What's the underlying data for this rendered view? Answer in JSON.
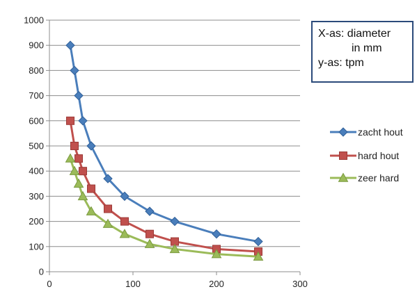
{
  "chart_data": {
    "type": "line",
    "xlim": [
      0,
      300
    ],
    "ylim": [
      0,
      1000
    ],
    "xticks": [
      "0",
      "100",
      "200",
      "300"
    ],
    "yticks": [
      "0",
      "100",
      "200",
      "300",
      "400",
      "500",
      "600",
      "700",
      "800",
      "900",
      "1000"
    ],
    "grid": "horizontal",
    "legend_position": "right",
    "x": [
      25,
      30,
      35,
      40,
      50,
      70,
      90,
      120,
      150,
      200,
      250
    ],
    "series": [
      {
        "name": "zacht hout",
        "color": "#4a7ebb",
        "marker": "diamond",
        "values": [
          900,
          800,
          700,
          600,
          500,
          370,
          300,
          240,
          200,
          150,
          120
        ]
      },
      {
        "name": "hard hout",
        "color": "#c0504d",
        "marker": "square",
        "values": [
          600,
          500,
          450,
          400,
          330,
          250,
          200,
          150,
          120,
          90,
          80
        ]
      },
      {
        "name": "zeer hard",
        "color": "#9bbb59",
        "marker": "triangle",
        "values": [
          450,
          400,
          350,
          300,
          240,
          190,
          150,
          110,
          90,
          70,
          60
        ]
      }
    ],
    "annotation": [
      "X-as: diameter",
      "in mm",
      "y-as: tpm"
    ]
  }
}
